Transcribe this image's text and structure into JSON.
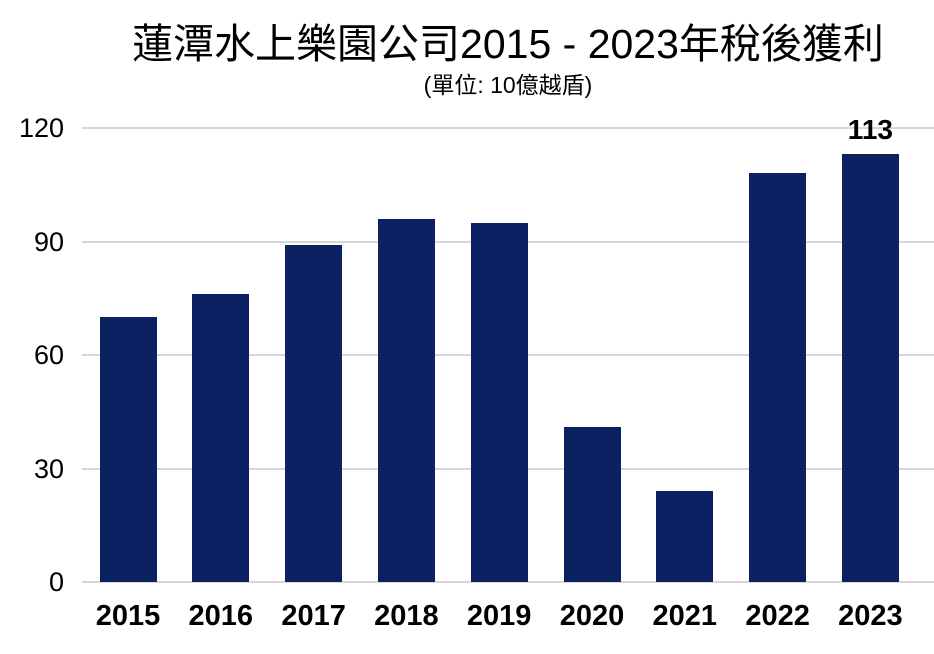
{
  "chart_data": {
    "type": "bar",
    "title": "蓮潭水上樂園公司2015 - 2023年稅後獲利",
    "subtitle": "(單位: 10億越盾)",
    "categories": [
      "2015",
      "2016",
      "2017",
      "2018",
      "2019",
      "2020",
      "2021",
      "2022",
      "2023"
    ],
    "values": [
      70,
      76,
      89,
      96,
      95,
      41,
      24,
      108,
      113
    ],
    "data_labels": [
      "",
      "",
      "",
      "",
      "",
      "",
      "",
      "",
      "113"
    ],
    "yticks": [
      0,
      30,
      60,
      90,
      120
    ],
    "ylim": [
      0,
      120
    ],
    "xlabel": "",
    "ylabel": "",
    "grid": true,
    "legend": false,
    "colors": {
      "bar": "#0b2161",
      "gridline": "#d7d7d7",
      "text": "#000000",
      "background": "#ffffff"
    }
  }
}
